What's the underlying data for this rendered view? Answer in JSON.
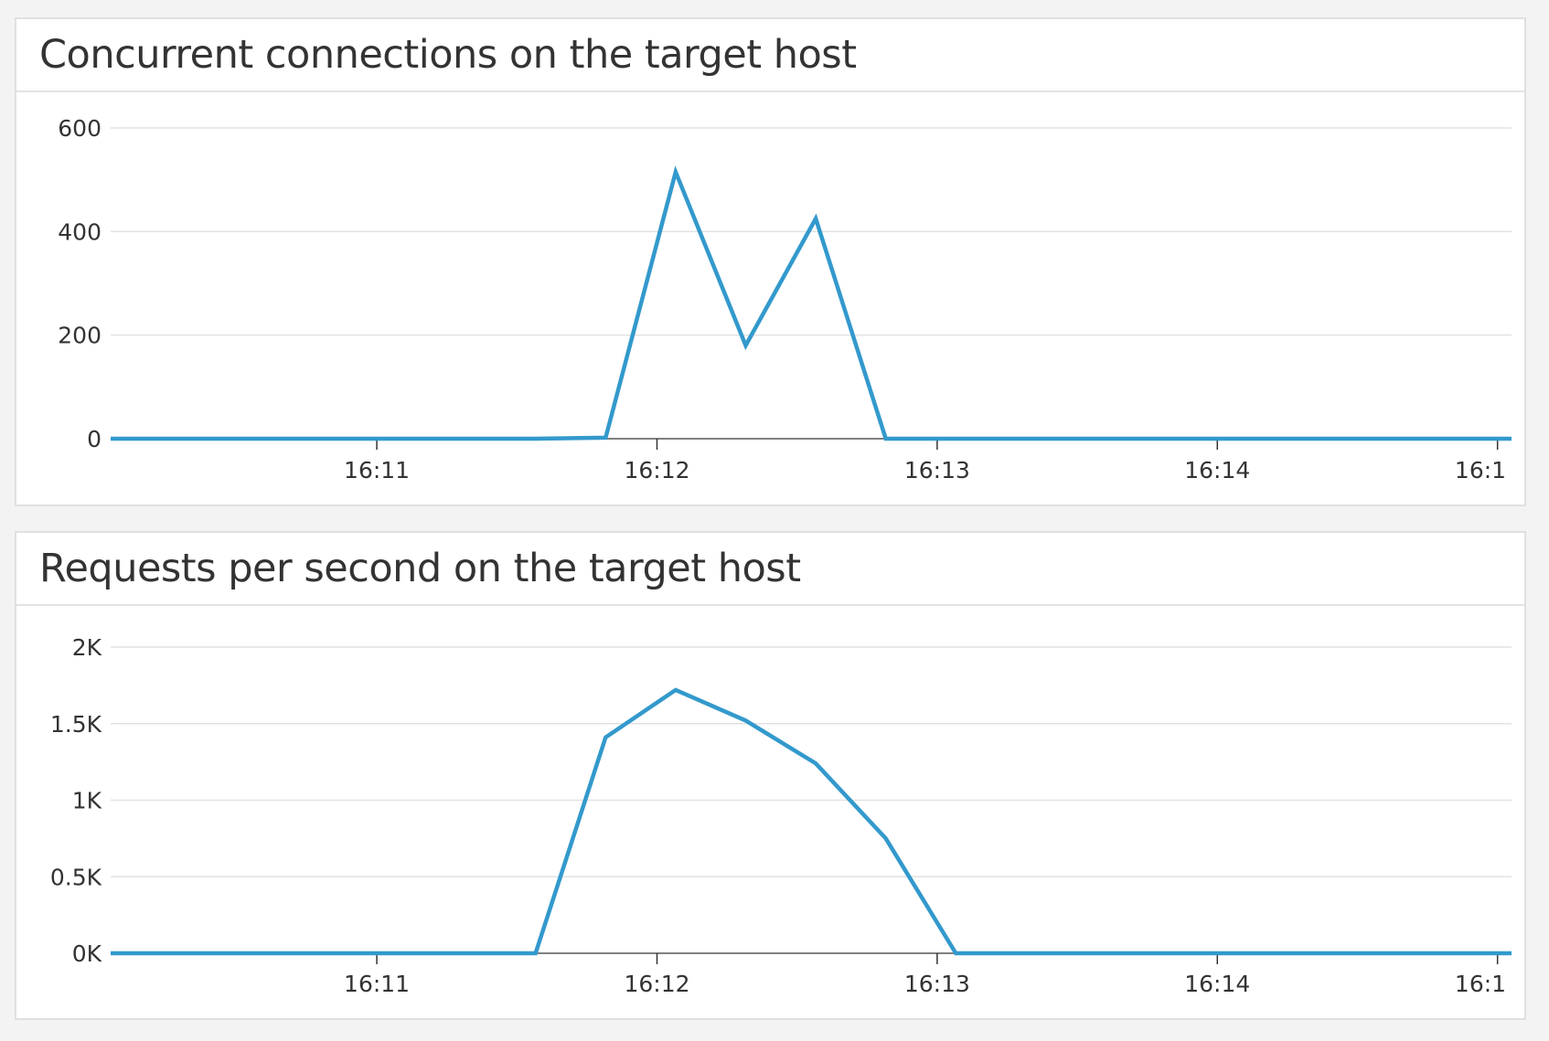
{
  "colors": {
    "series": "#3399cc",
    "grid": "#e2e2e2",
    "axis": "#555555",
    "background": "#f3f3f3"
  },
  "chart_data": [
    {
      "type": "line",
      "title": "Concurrent connections on the target host",
      "xlabel": "",
      "ylabel": "",
      "xlim": [
        "16:10:03",
        "16:15:03"
      ],
      "ylim": [
        0,
        600
      ],
      "grid": true,
      "x_ticks": [
        "16:11",
        "16:12",
        "16:13",
        "16:14",
        "16:1"
      ],
      "y_ticks": [
        {
          "value": 0,
          "label": "0"
        },
        {
          "value": 200,
          "label": "200"
        },
        {
          "value": 400,
          "label": "400"
        },
        {
          "value": 600,
          "label": "600"
        }
      ],
      "series": [
        {
          "x": [
            "16:10:03",
            "16:11:34",
            "16:11:49",
            "16:12:04",
            "16:12:19",
            "16:12:34",
            "16:12:49",
            "16:13:04",
            "16:15:03"
          ],
          "y": [
            0,
            0,
            2,
            515,
            180,
            425,
            0,
            0,
            0
          ]
        }
      ]
    },
    {
      "type": "line",
      "title": "Requests per second on the target host",
      "xlabel": "",
      "ylabel": "",
      "xlim": [
        "16:10:03",
        "16:15:03"
      ],
      "ylim": [
        0,
        2000
      ],
      "grid": true,
      "x_ticks": [
        "16:11",
        "16:12",
        "16:13",
        "16:14",
        "16:1"
      ],
      "y_ticks": [
        {
          "value": 0,
          "label": "0K"
        },
        {
          "value": 500,
          "label": "0.5K"
        },
        {
          "value": 1000,
          "label": "1K"
        },
        {
          "value": 1500,
          "label": "1.5K"
        },
        {
          "value": 2000,
          "label": "2K"
        }
      ],
      "series": [
        {
          "x": [
            "16:10:03",
            "16:11:34",
            "16:11:49",
            "16:12:04",
            "16:12:19",
            "16:12:34",
            "16:12:49",
            "16:13:04",
            "16:15:03"
          ],
          "y": [
            0,
            0,
            1410,
            1720,
            1520,
            1240,
            750,
            0,
            0
          ]
        }
      ]
    }
  ]
}
